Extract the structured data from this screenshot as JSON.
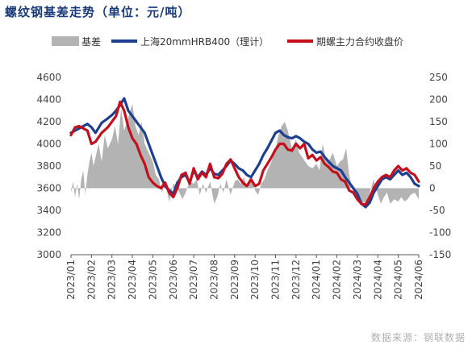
{
  "title": "螺纹钢基差走势（单位：元/吨）",
  "source": "数据来源：钢联数据",
  "colors": {
    "basis": "#b3b3b3",
    "spot": "#1f3f8f",
    "futures": "#c3101c"
  },
  "chart_data": {
    "type": "line",
    "legend_position": "top",
    "categories": [
      "2023/01",
      "2023/02",
      "2023/03",
      "2023/04",
      "2023/05",
      "2023/06",
      "2023/07",
      "2023/08",
      "2023/09",
      "2023/10",
      "2023/11",
      "2023/12",
      "2024/01",
      "2024/02",
      "2024/03",
      "2024/04",
      "2024/05",
      "2024/06"
    ],
    "ylim_left": [
      3000,
      4600
    ],
    "yticks_left": [
      "3000",
      "3200",
      "3400",
      "3600",
      "3800",
      "4000",
      "4200",
      "4400",
      "4600"
    ],
    "ylim_right": [
      -150,
      250
    ],
    "yticks_right": [
      "-150",
      "-100",
      "-50",
      "0",
      "50",
      "100",
      "150",
      "200",
      "250"
    ],
    "series": [
      {
        "name": "基差",
        "type": "area",
        "axis": "right",
        "x": [
          0,
          0.1,
          0.2,
          0.3,
          0.4,
          0.5,
          0.6,
          0.7,
          0.8,
          0.9,
          1,
          1.1,
          1.2,
          1.35,
          1.5,
          1.65,
          1.8,
          2,
          2.15,
          2.3,
          2.45,
          2.6,
          2.8,
          3,
          3.15,
          3.3,
          3.45,
          3.6,
          3.8,
          4,
          4.15,
          4.3,
          4.45,
          4.6,
          4.8,
          5,
          5.15,
          5.3,
          5.45,
          5.6,
          5.8,
          6,
          6.15,
          6.3,
          6.45,
          6.6,
          6.8,
          7,
          7.15,
          7.3,
          7.45,
          7.6,
          7.8,
          8,
          8.15,
          8.3,
          8.45,
          8.6,
          8.8,
          9,
          9.15,
          9.3,
          9.45,
          9.6,
          9.8,
          10,
          10.15,
          10.3,
          10.45,
          10.6,
          10.8,
          11,
          11.15,
          11.3,
          11.45,
          11.6,
          11.8,
          12,
          12.15,
          12.3,
          12.45,
          12.6,
          12.8,
          13,
          13.15,
          13.3,
          13.45,
          13.6,
          13.8,
          14,
          14.15,
          14.3,
          14.45,
          14.6,
          14.8,
          15,
          15.15,
          15.3,
          15.45,
          15.6,
          15.8,
          16,
          16.15,
          16.3,
          16.45,
          16.6,
          16.8,
          17
        ],
        "values": [
          -10,
          15,
          -20,
          10,
          -25,
          20,
          40,
          -15,
          30,
          60,
          80,
          50,
          70,
          100,
          60,
          120,
          90,
          110,
          140,
          100,
          180,
          130,
          160,
          190,
          140,
          120,
          150,
          100,
          80,
          60,
          30,
          20,
          -10,
          15,
          -30,
          10,
          5,
          -10,
          -25,
          -10,
          15,
          10,
          20,
          -15,
          10,
          -10,
          15,
          -35,
          -20,
          10,
          -10,
          20,
          -15,
          15,
          20,
          10,
          25,
          5,
          20,
          -5,
          -15,
          10,
          20,
          40,
          60,
          90,
          120,
          140,
          150,
          130,
          90,
          110,
          80,
          70,
          60,
          50,
          45,
          55,
          40,
          100,
          70,
          60,
          80,
          50,
          60,
          65,
          90,
          30,
          -10,
          -20,
          -40,
          -30,
          -35,
          -10,
          20,
          -15,
          -35,
          -20,
          -10,
          -35,
          -25,
          -30,
          -20,
          -30,
          -25,
          -15,
          -10,
          -25
        ]
      },
      {
        "name": "上海20mmHRB400（理计）",
        "type": "line",
        "axis": "left",
        "x": [
          0,
          0.2,
          0.4,
          0.6,
          0.8,
          1,
          1.2,
          1.5,
          1.8,
          2,
          2.2,
          2.4,
          2.6,
          2.8,
          3,
          3.2,
          3.4,
          3.6,
          3.8,
          4,
          4.2,
          4.4,
          4.6,
          4.8,
          5,
          5.2,
          5.4,
          5.6,
          5.8,
          6,
          6.2,
          6.4,
          6.6,
          6.8,
          7,
          7.2,
          7.4,
          7.6,
          7.8,
          8,
          8.2,
          8.4,
          8.6,
          8.8,
          9,
          9.2,
          9.4,
          9.6,
          9.8,
          10,
          10.2,
          10.4,
          10.6,
          10.8,
          11,
          11.2,
          11.4,
          11.6,
          11.8,
          12,
          12.2,
          12.4,
          12.6,
          12.8,
          13,
          13.2,
          13.4,
          13.6,
          13.8,
          14,
          14.2,
          14.4,
          14.6,
          14.8,
          15,
          15.2,
          15.4,
          15.6,
          15.8,
          16,
          16.2,
          16.4,
          16.6,
          16.8,
          17
        ],
        "values": [
          4100,
          4120,
          4140,
          4160,
          4180,
          4150,
          4100,
          4190,
          4230,
          4260,
          4300,
          4350,
          4410,
          4300,
          4250,
          4200,
          4150,
          4100,
          4000,
          3900,
          3800,
          3700,
          3620,
          3580,
          3550,
          3650,
          3700,
          3720,
          3650,
          3760,
          3700,
          3750,
          3720,
          3780,
          3730,
          3720,
          3760,
          3800,
          3850,
          3820,
          3780,
          3760,
          3720,
          3700,
          3760,
          3820,
          3900,
          3960,
          4030,
          4100,
          4120,
          4080,
          4060,
          4050,
          4070,
          4050,
          4020,
          4000,
          3950,
          3920,
          3930,
          3880,
          3840,
          3800,
          3780,
          3760,
          3700,
          3650,
          3600,
          3550,
          3460,
          3430,
          3470,
          3560,
          3620,
          3680,
          3700,
          3680,
          3720,
          3760,
          3720,
          3740,
          3700,
          3640,
          3620
        ]
      },
      {
        "name": "期螺主力合约收盘价",
        "type": "line",
        "axis": "left",
        "x": [
          0,
          0.2,
          0.4,
          0.6,
          0.8,
          1,
          1.2,
          1.5,
          1.8,
          2,
          2.2,
          2.4,
          2.6,
          2.8,
          3,
          3.2,
          3.4,
          3.6,
          3.8,
          4,
          4.2,
          4.4,
          4.6,
          4.8,
          5,
          5.2,
          5.4,
          5.6,
          5.8,
          6,
          6.2,
          6.4,
          6.6,
          6.8,
          7,
          7.2,
          7.4,
          7.6,
          7.8,
          8,
          8.2,
          8.4,
          8.6,
          8.8,
          9,
          9.2,
          9.4,
          9.6,
          9.8,
          10,
          10.2,
          10.4,
          10.6,
          10.8,
          11,
          11.2,
          11.4,
          11.6,
          11.8,
          12,
          12.2,
          12.4,
          12.6,
          12.8,
          13,
          13.2,
          13.4,
          13.6,
          13.8,
          14,
          14.2,
          14.4,
          14.6,
          14.8,
          15,
          15.2,
          15.4,
          15.6,
          15.8,
          16,
          16.2,
          16.4,
          16.6,
          16.8,
          17
        ],
        "values": [
          4080,
          4150,
          4160,
          4140,
          4120,
          4000,
          4020,
          4100,
          4150,
          4200,
          4250,
          4380,
          4300,
          4150,
          4050,
          4000,
          3900,
          3820,
          3700,
          3650,
          3620,
          3600,
          3650,
          3560,
          3520,
          3600,
          3720,
          3740,
          3640,
          3780,
          3680,
          3740,
          3700,
          3820,
          3700,
          3690,
          3730,
          3820,
          3860,
          3780,
          3700,
          3650,
          3620,
          3680,
          3620,
          3640,
          3760,
          3820,
          3880,
          3950,
          4000,
          4000,
          3950,
          3940,
          4000,
          3960,
          4000,
          3870,
          3900,
          3850,
          3880,
          3820,
          3790,
          3750,
          3740,
          3680,
          3660,
          3580,
          3560,
          3500,
          3460,
          3450,
          3520,
          3600,
          3660,
          3700,
          3720,
          3700,
          3760,
          3800,
          3760,
          3780,
          3740,
          3720,
          3660
        ]
      }
    ]
  }
}
